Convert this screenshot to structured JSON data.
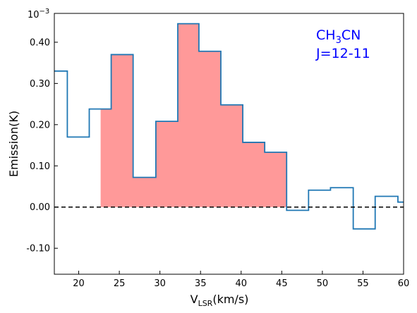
{
  "chart_data": {
    "type": "line",
    "step": true,
    "xlabel": {
      "main": "V",
      "sub": "LSR",
      "rest": "(km/s)"
    },
    "ylabel": "Emission(K)",
    "scale_label": {
      "base": "10",
      "exp": "−3"
    },
    "annotation": {
      "molecule_prefix": "CH",
      "molecule_sub": "3",
      "molecule_suffix": "CN",
      "transition": "J=12-11"
    },
    "xlim": [
      17,
      60
    ],
    "ylim": [
      -0.163,
      0.47
    ],
    "xticks": [
      20,
      25,
      30,
      35,
      40,
      45,
      50,
      55,
      60
    ],
    "yticks": [
      -0.1,
      0.0,
      0.1,
      0.2,
      0.3,
      0.4
    ],
    "ytick_labels": [
      "-0.10",
      "0.00",
      "0.10",
      "0.20",
      "0.30",
      "0.40"
    ],
    "series": [
      {
        "edges": [
          17.0,
          18.6,
          21.3,
          24.0,
          26.7,
          29.5,
          32.2,
          34.8,
          37.5,
          40.2,
          42.9,
          45.6,
          48.3,
          51.0,
          53.8,
          56.5,
          59.3,
          60.0
        ],
        "values": [
          0.33,
          0.17,
          0.238,
          0.37,
          0.072,
          0.208,
          0.445,
          0.378,
          0.248,
          0.157,
          0.133,
          -0.008,
          0.041,
          0.047,
          -0.053,
          0.026,
          0.012
        ]
      }
    ],
    "shaded_region": {
      "x_start": 22.7,
      "x_end": 45.6
    },
    "baseline": 0.0,
    "colors": {
      "line": "#1f77b4",
      "fill": "#ff9999",
      "annotation": "#0000ff",
      "baseline": "#000000"
    }
  }
}
